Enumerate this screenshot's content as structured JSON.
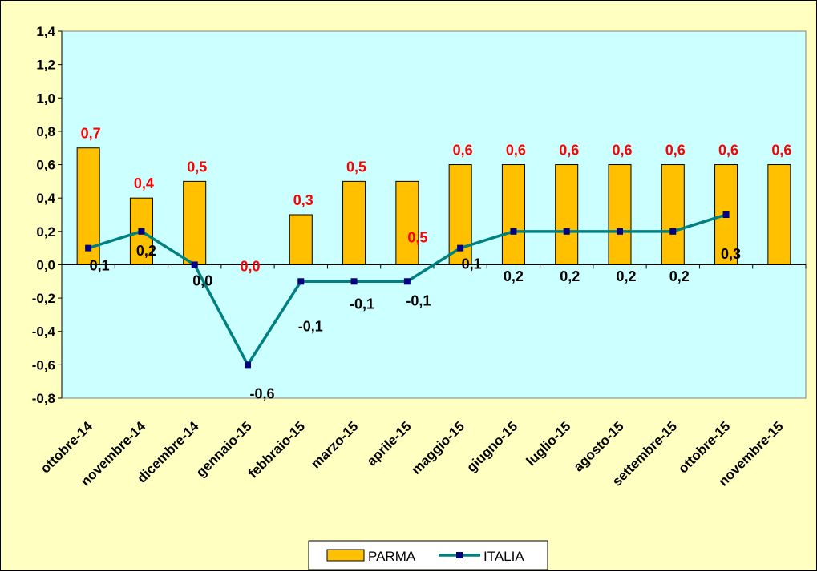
{
  "chart_data": {
    "type": "bar",
    "categories": [
      "ottobre-14",
      "novembre-14",
      "dicembre-14",
      "gennaio-15",
      "febbraio-15",
      "marzo-15",
      "aprile-15",
      "maggio-15",
      "giugno-15",
      "luglio-15",
      "agosto-15",
      "settembre-15",
      "ottobre-15",
      "novembre-15"
    ],
    "series": [
      {
        "name": "PARMA",
        "type": "bar",
        "values": [
          0.7,
          0.4,
          0.5,
          0.0,
          0.3,
          0.5,
          0.5,
          0.6,
          0.6,
          0.6,
          0.6,
          0.6,
          0.6,
          0.6
        ],
        "labels": [
          "0,7",
          "0,4",
          "0,5",
          "0,0",
          "0,3",
          "0,5",
          "0,5",
          "0,6",
          "0,6",
          "0,6",
          "0,6",
          "0,6",
          "0,6",
          "0,6"
        ],
        "color": "#ffc000"
      },
      {
        "name": "ITALIA",
        "type": "line",
        "values": [
          0.1,
          0.2,
          0.0,
          -0.6,
          -0.1,
          -0.1,
          -0.1,
          0.1,
          0.2,
          0.2,
          0.2,
          0.2,
          0.3,
          null
        ],
        "labels": [
          "0,1",
          "0,2",
          "0,0",
          "-0,6",
          "-0,1",
          "-0,1",
          "-0,1",
          "0,1",
          "0,2",
          "0,2",
          "0,2",
          "0,2",
          "0,3",
          ""
        ],
        "color": "#008080",
        "marker_color": "#000080"
      }
    ],
    "yticks": [
      "1,4",
      "1,2",
      "1,0",
      "0,8",
      "0,6",
      "0,4",
      "0,2",
      "0,0",
      "-0,2",
      "-0,4",
      "-0,6",
      "-0,8"
    ],
    "ylim": [
      -0.8,
      1.4
    ],
    "legend_position": "bottom",
    "plot_background": "#ccffff",
    "page_background": "#ffffc2"
  }
}
